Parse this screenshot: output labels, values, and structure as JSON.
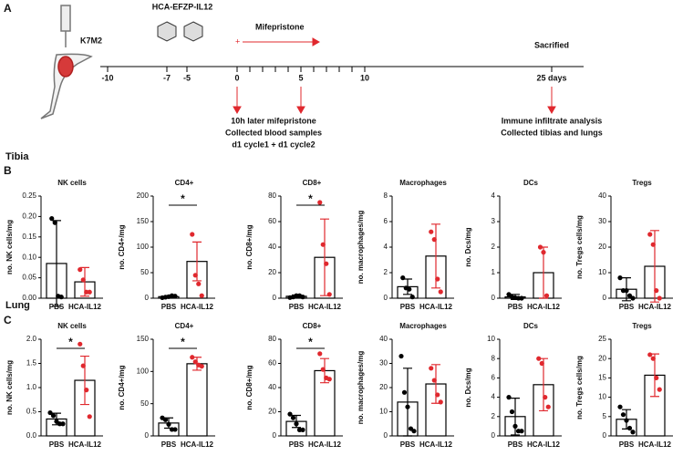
{
  "panel_labels": {
    "a": "A",
    "b": "B",
    "c": "C"
  },
  "rows": [
    "Tibia",
    "Lung"
  ],
  "timeline": {
    "vector": "HCA-EFZP-IL12",
    "cells": "K7M2",
    "drug": "Mifepristone",
    "end": "Sacrified",
    "labels": [
      "-10",
      "-7",
      "-5",
      "0",
      "5",
      "10",
      "25 days"
    ],
    "notes_left": [
      "10h later mifepristone",
      "Collected blood samples",
      "d1 cycle1 + d1 cycle2"
    ],
    "notes_right": [
      "Immune infiltrate analysis",
      "Collected tibias and lungs"
    ]
  },
  "chart_data": [
    {
      "type": "bar",
      "title": "NK cells",
      "y_label": "no. NK cells/mg",
      "categories": [
        "PBS",
        "HCA-IL12"
      ],
      "values": [
        0.085,
        0.04
      ],
      "errors": [
        0.105,
        0.035
      ],
      "points": [
        [
          0.195,
          0.185,
          0.005,
          0.003
        ],
        [
          0.07,
          0.045,
          0.015,
          0.015
        ]
      ],
      "colors": [
        "#000000",
        "#e0282e"
      ],
      "ylim": [
        0,
        0.25
      ],
      "yticks": [
        {
          "value": 0,
          "label": "0.00"
        },
        0.05,
        {
          "value": 0.1,
          "label": "0.10"
        },
        0.15,
        {
          "value": 0.2,
          "label": "0.20"
        },
        0.25
      ]
    },
    {
      "type": "bar",
      "title": "CD4+",
      "y_label": "no. CD4+/mg",
      "categories": [
        "PBS",
        "HCA-IL12"
      ],
      "values": [
        3,
        72
      ],
      "errors": [
        2,
        38
      ],
      "points": [
        [
          1,
          2,
          3,
          5,
          4
        ],
        [
          125,
          45,
          28,
          5
        ]
      ],
      "colors": [
        "#000000",
        "#e0282e"
      ],
      "ylim": [
        0,
        200
      ],
      "yticks": [
        0,
        50,
        100,
        150,
        200
      ],
      "significance": "*"
    },
    {
      "type": "bar",
      "title": "CD8+",
      "y_label": "no. CD8+/mg",
      "categories": [
        "PBS",
        "HCA-IL12"
      ],
      "values": [
        1.5,
        32
      ],
      "errors": [
        1,
        30
      ],
      "points": [
        [
          0.5,
          1,
          2,
          2,
          1
        ],
        [
          75,
          42,
          27,
          3
        ]
      ],
      "colors": [
        "#000000",
        "#e0282e"
      ],
      "ylim": [
        0,
        80
      ],
      "yticks": [
        0,
        20,
        40,
        60,
        80
      ],
      "significance": "*"
    },
    {
      "type": "bar",
      "title": "Macrophages",
      "y_label": "no. macrophages/mg",
      "categories": [
        "PBS",
        "HCA-IL12"
      ],
      "values": [
        0.9,
        3.3
      ],
      "errors": [
        0.6,
        2.5
      ],
      "points": [
        [
          1.6,
          0.8,
          0.7,
          0.1
        ],
        [
          5.2,
          4.6,
          1.5,
          0.5
        ]
      ],
      "colors": [
        "#000000",
        "#e0282e"
      ],
      "ylim": [
        0,
        8
      ],
      "yticks": [
        0,
        2,
        4,
        6,
        8
      ]
    },
    {
      "type": "bar",
      "title": "DCs",
      "y_label": "no. Dcs/mg",
      "categories": [
        "PBS",
        "HCA-IL12"
      ],
      "values": [
        0.05,
        1.0
      ],
      "errors": [
        0.1,
        1.0
      ],
      "points": [
        [
          0.15,
          0.05,
          0.02,
          0,
          0
        ],
        [
          2.0,
          1.8,
          0.1
        ]
      ],
      "colors": [
        "#000000",
        "#e0282e"
      ],
      "ylim": [
        0,
        4
      ],
      "yticks": [
        0,
        1,
        2,
        3,
        4
      ]
    },
    {
      "type": "bar",
      "title": "Tregs",
      "y_label": "no. Tregs cells/mg",
      "categories": [
        "PBS",
        "HCA-IL12"
      ],
      "values": [
        3.5,
        12.5
      ],
      "errors": [
        4.5,
        14
      ],
      "points": [
        [
          8,
          3,
          3,
          1,
          0
        ],
        [
          25,
          21,
          3,
          0
        ]
      ],
      "colors": [
        "#000000",
        "#e0282e"
      ],
      "ylim": [
        0,
        40
      ],
      "yticks": [
        0,
        10,
        20,
        30,
        40
      ]
    },
    {
      "type": "bar",
      "title": "NK cells",
      "y_label": "no. NK cells/mg",
      "categories": [
        "PBS",
        "HCA-IL12"
      ],
      "values": [
        0.35,
        1.15
      ],
      "errors": [
        0.12,
        0.5
      ],
      "points": [
        [
          0.48,
          0.42,
          0.3,
          0.25,
          0.25
        ],
        [
          1.9,
          1.45,
          0.95,
          0.4
        ]
      ],
      "colors": [
        "#000000",
        "#e0282e"
      ],
      "ylim": [
        0,
        2
      ],
      "yticks": [
        {
          "value": 0,
          "label": "0.0"
        },
        0.5,
        {
          "value": 1,
          "label": "1.0"
        },
        1.5,
        {
          "value": 2,
          "label": "2.0"
        }
      ],
      "significance": "*"
    },
    {
      "type": "bar",
      "title": "CD4+",
      "y_label": "no. CD4+/mg",
      "categories": [
        "PBS",
        "HCA-IL12"
      ],
      "values": [
        20,
        112
      ],
      "errors": [
        8,
        10
      ],
      "points": [
        [
          28,
          25,
          18,
          10,
          10
        ],
        [
          122,
          115,
          110,
          108
        ]
      ],
      "colors": [
        "#000000",
        "#e0282e"
      ],
      "ylim": [
        0,
        150
      ],
      "yticks": [
        0,
        50,
        100,
        150
      ],
      "significance": "*"
    },
    {
      "type": "bar",
      "title": "CD8+",
      "y_label": "no. CD8+/mg",
      "categories": [
        "PBS",
        "HCA-IL12"
      ],
      "values": [
        12,
        54
      ],
      "errors": [
        5,
        10
      ],
      "points": [
        [
          18,
          15,
          10,
          5,
          5
        ],
        [
          68,
          55,
          48,
          47
        ]
      ],
      "colors": [
        "#000000",
        "#e0282e"
      ],
      "ylim": [
        0,
        80
      ],
      "yticks": [
        0,
        20,
        40,
        60,
        80
      ],
      "significance": "*"
    },
    {
      "type": "bar",
      "title": "Macrophages",
      "y_label": "no. macrophages/mg",
      "categories": [
        "PBS",
        "HCA-IL12"
      ],
      "values": [
        14,
        21.5
      ],
      "errors": [
        14,
        8
      ],
      "points": [
        [
          33,
          18,
          12,
          3,
          2
        ],
        [
          28,
          23,
          17,
          14
        ]
      ],
      "colors": [
        "#000000",
        "#e0282e"
      ],
      "ylim": [
        0,
        40
      ],
      "yticks": [
        0,
        10,
        20,
        30,
        40
      ]
    },
    {
      "type": "bar",
      "title": "DCs",
      "y_label": "no. Dcs/mg",
      "categories": [
        "PBS",
        "HCA-IL12"
      ],
      "values": [
        2,
        5.3
      ],
      "errors": [
        1.9,
        2.7
      ],
      "points": [
        [
          4,
          2.5,
          1,
          0.5,
          0.5
        ],
        [
          8,
          7.5,
          4,
          3
        ]
      ],
      "colors": [
        "#000000",
        "#e0282e"
      ],
      "ylim": [
        0,
        10
      ],
      "yticks": [
        0,
        2,
        4,
        6,
        8,
        10
      ]
    },
    {
      "type": "bar",
      "title": "Tregs",
      "y_label": "no. Tregs cells/mg",
      "categories": [
        "PBS",
        "HCA-IL12"
      ],
      "values": [
        4.3,
        15.7
      ],
      "errors": [
        2.5,
        5.5
      ],
      "points": [
        [
          7.5,
          5.5,
          4,
          2,
          1
        ],
        [
          21,
          20,
          15,
          12
        ]
      ],
      "colors": [
        "#000000",
        "#e0282e"
      ],
      "ylim": [
        0,
        25
      ],
      "yticks": [
        0,
        5,
        10,
        15,
        20,
        25
      ]
    }
  ]
}
